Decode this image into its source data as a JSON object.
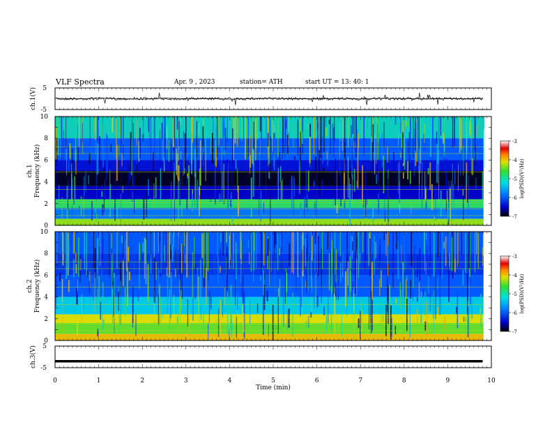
{
  "header": {
    "title": "VLF  Spectra",
    "date": "Apr. 9  , 2023",
    "station": "station= ATH",
    "start": "start  UT  =   13: 40: 1"
  },
  "chart_data": [
    {
      "type": "line",
      "panel": "ch1-waveform",
      "ylabel": "ch.1(V)",
      "ylim": [
        -5,
        5
      ],
      "yticks": [
        5,
        -5
      ],
      "description_values_in": "V",
      "x": [
        0,
        0.5,
        1,
        1.5,
        2,
        2.5,
        3,
        3.5,
        4,
        4.5,
        5,
        5.5,
        6,
        6.5,
        7,
        7.5,
        8,
        8.5,
        9,
        9.5,
        9.8
      ],
      "y": [
        0.2,
        -0.1,
        0.3,
        0.0,
        -0.2,
        0.3,
        0.0,
        0.1,
        -0.2,
        0.1,
        0.2,
        -0.1,
        0.1,
        0.0,
        -0.1,
        0.2,
        0.0,
        -0.1,
        0.1,
        0.0,
        0.1
      ]
    },
    {
      "type": "heatmap",
      "panel": "ch1-spectrogram",
      "ylabel_top": "ch.1",
      "ylabel": "Frequency (kHz)",
      "ylim": [
        0,
        10
      ],
      "yticks": [
        "10",
        "8",
        "6",
        "4",
        "2",
        "0"
      ],
      "colorbar_label": "log(PSD)(V²/Hz)",
      "colorbar_range": [
        -7,
        -3
      ],
      "colorbar_ticks": [
        "-3",
        "-4",
        "-5",
        "-6",
        "-7"
      ],
      "bands": [
        {
          "from": 8.0,
          "to": 10.0,
          "level": -5.5
        },
        {
          "from": 6.0,
          "to": 8.0,
          "level": -6.0
        },
        {
          "from": 5.0,
          "to": 6.0,
          "level": -6.4
        },
        {
          "from": 3.6,
          "to": 5.0,
          "level": -6.9
        },
        {
          "from": 2.4,
          "to": 3.6,
          "level": -6.5
        },
        {
          "from": 1.6,
          "to": 2.4,
          "level": -5.3
        },
        {
          "from": 0.6,
          "to": 1.6,
          "level": -5.9
        },
        {
          "from": 0.0,
          "to": 0.6,
          "level": -5.0
        }
      ]
    },
    {
      "type": "heatmap",
      "panel": "ch2-spectrogram",
      "ylabel_top": "ch.2",
      "ylabel": "Frequency (kHz)",
      "ylim": [
        0,
        10
      ],
      "yticks": [
        "10",
        "8",
        "6",
        "4",
        "2",
        "0"
      ],
      "colorbar_label": "log(PSD)(V²/Hz)",
      "colorbar_range": [
        -7,
        -3
      ],
      "colorbar_ticks": [
        "-3",
        "-4",
        "-5",
        "-6",
        "-7"
      ],
      "bands": [
        {
          "from": 8.0,
          "to": 10.0,
          "level": -6.0
        },
        {
          "from": 6.0,
          "to": 8.0,
          "level": -6.2
        },
        {
          "from": 4.0,
          "to": 6.0,
          "level": -6.0
        },
        {
          "from": 2.4,
          "to": 4.0,
          "level": -5.6
        },
        {
          "from": 1.6,
          "to": 2.4,
          "level": -4.8
        },
        {
          "from": 0.6,
          "to": 1.6,
          "level": -5.1
        },
        {
          "from": 0.0,
          "to": 0.6,
          "level": -4.6
        }
      ]
    },
    {
      "type": "line",
      "panel": "ch3-waveform",
      "ylabel": "ch.3(V)",
      "ylim": [
        -5,
        5
      ],
      "yticks": [
        5,
        -5
      ],
      "x": [
        0,
        9.8
      ],
      "y": [
        -2,
        -2
      ]
    }
  ],
  "x_axis": {
    "xlabel": "Time  (min)",
    "xlim": [
      0,
      10
    ],
    "ticks": [
      "0",
      "1",
      "2",
      "3",
      "4",
      "5",
      "6",
      "7",
      "8",
      "9",
      "10"
    ]
  },
  "colors": {
    "bg_dark": "#00004a",
    "axis": "#000000"
  }
}
